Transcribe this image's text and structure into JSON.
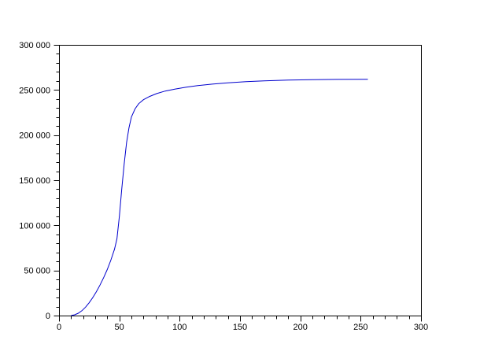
{
  "window": {
    "background": "#ffffff"
  },
  "chart_data": {
    "type": "line",
    "title": "",
    "xlabel": "",
    "ylabel": "",
    "legend": "none",
    "grid": false,
    "frame": "full-box",
    "frame_color": "#000000",
    "tick_color": "#000000",
    "label_color": "#000000",
    "line_color": "#0000cd",
    "xlim": [
      0,
      300
    ],
    "ylim": [
      0,
      300000
    ],
    "x_axis": {
      "minor_step": 10,
      "ticks": [
        {
          "v": 0,
          "label": "0"
        },
        {
          "v": 50,
          "label": "50"
        },
        {
          "v": 100,
          "label": "100"
        },
        {
          "v": 150,
          "label": "150"
        },
        {
          "v": 200,
          "label": "200"
        },
        {
          "v": 250,
          "label": "250"
        },
        {
          "v": 300,
          "label": "300"
        }
      ]
    },
    "y_axis": {
      "minor_step": 10000,
      "ticks": [
        {
          "v": 0,
          "label": "0"
        },
        {
          "v": 50000,
          "label": "50 000"
        },
        {
          "v": 100000,
          "label": "100 000"
        },
        {
          "v": 150000,
          "label": "150 000"
        },
        {
          "v": 200000,
          "label": "200 000"
        },
        {
          "v": 250000,
          "label": "250 000"
        },
        {
          "v": 300000,
          "label": "300 000"
        }
      ]
    },
    "series": [
      {
        "name": "curve",
        "points": [
          [
            10,
            0
          ],
          [
            13,
            900
          ],
          [
            16,
            2600
          ],
          [
            19,
            5400
          ],
          [
            22,
            9300
          ],
          [
            25,
            14200
          ],
          [
            28,
            20000
          ],
          [
            31,
            26500
          ],
          [
            34,
            33800
          ],
          [
            37,
            42000
          ],
          [
            40,
            51000
          ],
          [
            43,
            61500
          ],
          [
            46,
            73500
          ],
          [
            48,
            85000
          ],
          [
            50,
            110000
          ],
          [
            52,
            140000
          ],
          [
            54,
            168000
          ],
          [
            56,
            192000
          ],
          [
            58,
            208000
          ],
          [
            60,
            220000
          ],
          [
            63,
            229000
          ],
          [
            66,
            234800
          ],
          [
            70,
            239200
          ],
          [
            75,
            242800
          ],
          [
            81,
            246000
          ],
          [
            88,
            248800
          ],
          [
            96,
            251000
          ],
          [
            105,
            253000
          ],
          [
            115,
            254800
          ],
          [
            127,
            256500
          ],
          [
            140,
            258000
          ],
          [
            155,
            259200
          ],
          [
            170,
            260100
          ],
          [
            190,
            260900
          ],
          [
            210,
            261400
          ],
          [
            230,
            261700
          ],
          [
            256,
            261900
          ]
        ]
      }
    ]
  }
}
